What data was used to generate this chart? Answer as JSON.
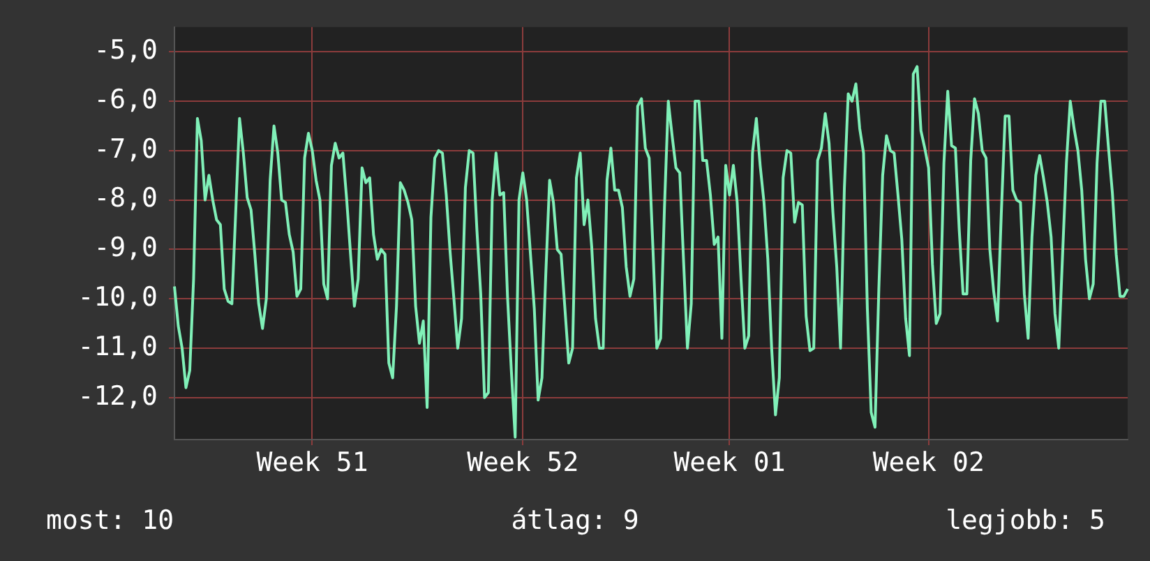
{
  "chart_data": {
    "type": "line",
    "annotations": [
      "most: 10",
      "átlag: 9",
      "legjobb: 5"
    ],
    "categories": [
      null,
      null,
      null,
      null,
      null,
      null,
      null,
      null,
      null,
      null,
      null,
      null,
      null,
      null,
      null,
      null,
      null,
      null,
      null,
      null,
      null,
      null,
      null,
      null,
      null,
      null,
      null,
      null,
      null,
      null,
      null,
      null,
      null,
      null,
      null,
      null,
      "Week 51",
      null,
      null,
      null,
      null,
      null,
      null,
      null,
      null,
      null,
      null,
      null,
      null,
      null,
      null,
      null,
      null,
      null,
      null,
      null,
      null,
      null,
      null,
      null,
      null,
      null,
      null,
      null,
      null,
      null,
      null,
      null,
      null,
      null,
      null,
      null,
      null,
      null,
      null,
      null,
      null,
      null,
      null,
      null,
      null,
      null,
      null,
      null,
      null,
      null,
      null,
      null,
      null,
      null,
      null,
      "Week 52",
      null,
      null,
      null,
      null,
      null,
      null,
      null,
      null,
      null,
      null,
      null,
      null,
      null,
      null,
      null,
      null,
      null,
      null,
      null,
      null,
      null,
      null,
      null,
      null,
      null,
      null,
      null,
      null,
      null,
      null,
      null,
      null,
      null,
      null,
      null,
      null,
      null,
      null,
      null,
      null,
      null,
      null,
      null,
      null,
      null,
      null,
      null,
      null,
      null,
      null,
      null,
      null,
      null,
      "Week 01",
      null,
      null,
      null,
      null,
      null,
      null,
      null,
      null,
      null,
      null,
      null,
      null,
      null,
      null,
      null,
      null,
      null,
      null,
      null,
      null,
      null,
      null,
      null,
      null,
      null,
      null,
      null,
      null,
      null,
      null,
      null,
      null,
      null,
      null,
      null,
      null,
      null,
      null,
      null,
      null,
      null,
      null,
      null,
      null,
      null,
      null,
      null,
      null,
      null,
      null,
      null,
      "Week 02",
      null,
      null,
      null,
      null,
      null,
      null,
      null,
      null,
      null,
      null,
      null,
      null,
      null,
      null,
      null,
      null,
      null,
      null,
      null,
      null,
      null,
      null,
      null,
      null,
      null,
      null,
      null,
      null,
      null,
      null,
      null,
      null,
      null,
      null,
      null,
      null,
      null,
      null,
      null,
      null,
      null,
      null,
      null,
      null,
      null,
      null,
      null,
      null,
      null,
      null,
      null,
      null
    ],
    "ylim": [
      -12.85,
      -4.5
    ],
    "yticks": [
      {
        "value": -12,
        "label": "-12,0"
      },
      {
        "value": -11,
        "label": "-11,0"
      },
      {
        "value": -10,
        "label": "-10,0"
      },
      {
        "value": -9,
        "label": "-9,0"
      },
      {
        "value": -8,
        "label": "-8,0"
      },
      {
        "value": -7,
        "label": "-7,0"
      },
      {
        "value": -6,
        "label": "-6,0"
      },
      {
        "value": -5,
        "label": "-5,0"
      }
    ],
    "grid": true,
    "legend": false,
    "marker": "none",
    "line_style": "solid",
    "series": [
      {
        "color": "#80f0b8",
        "values": [
          -9.75,
          -10.55,
          -11,
          -11.8,
          -11.45,
          -9.6,
          -6.35,
          -6.8,
          -8,
          -7.5,
          -8,
          -8.4,
          -8.5,
          -9.8,
          -10.05,
          -10.1,
          -8.25,
          -6.35,
          -7.05,
          -7.95,
          -8.2,
          -9.1,
          -10.1,
          -10.6,
          -10,
          -7.6,
          -6.5,
          -7.05,
          -8,
          -8.05,
          -8.7,
          -9.05,
          -9.95,
          -9.8,
          -7.15,
          -6.65,
          -7,
          -7.6,
          -8,
          -9.7,
          -10,
          -7.3,
          -6.85,
          -7.15,
          -7.05,
          -8,
          -9.1,
          -10.15,
          -9.6,
          -7.35,
          -7.65,
          -7.55,
          -8.7,
          -9.2,
          -9,
          -9.1,
          -11.3,
          -11.6,
          -10.15,
          -7.65,
          -7.8,
          -8.05,
          -8.4,
          -10.15,
          -10.9,
          -10.45,
          -12.2,
          -8.35,
          -7.15,
          -7,
          -7.05,
          -7.9,
          -9.05,
          -10,
          -11,
          -10.4,
          -7.75,
          -7,
          -7.05,
          -8.6,
          -9.9,
          -12,
          -11.9,
          -8,
          -7.05,
          -7.9,
          -7.85,
          -9.95,
          -11.45,
          -12.8,
          -8,
          -7.45,
          -8,
          -9.1,
          -10.2,
          -12.05,
          -11.6,
          -9.5,
          -7.6,
          -8.05,
          -9,
          -9.1,
          -10.2,
          -11.3,
          -11,
          -7.55,
          -7.05,
          -8.5,
          -8,
          -8.95,
          -10.4,
          -11,
          -11,
          -7.6,
          -6.95,
          -7.8,
          -7.8,
          -8.15,
          -9.35,
          -9.95,
          -9.6,
          -6.1,
          -5.95,
          -6.95,
          -7.15,
          -9,
          -11,
          -10.8,
          -8.15,
          -6,
          -6.7,
          -7.35,
          -7.45,
          -9.25,
          -11,
          -10.1,
          -6,
          -6,
          -7.2,
          -7.2,
          -7.9,
          -8.9,
          -8.75,
          -10.8,
          -7.3,
          -7.9,
          -7.3,
          -8.05,
          -9.6,
          -11,
          -10.75,
          -7.05,
          -6.35,
          -7.3,
          -8.05,
          -9.2,
          -11,
          -12.35,
          -11.6,
          -7.55,
          -7,
          -7.05,
          -8.45,
          -8.05,
          -8.1,
          -10.35,
          -11.05,
          -11,
          -7.2,
          -6.95,
          -6.25,
          -6.85,
          -8.25,
          -9.35,
          -11,
          -7.75,
          -5.85,
          -6,
          -5.65,
          -6.55,
          -7.05,
          -10.2,
          -12.3,
          -12.6,
          -9.8,
          -7.5,
          -6.7,
          -7,
          -7.05,
          -7.9,
          -8.8,
          -10.4,
          -11.15,
          -5.45,
          -5.3,
          -6.6,
          -6.95,
          -7.35,
          -9.3,
          -10.5,
          -10.3,
          -7.25,
          -5.8,
          -6.9,
          -6.95,
          -8.6,
          -9.9,
          -9.9,
          -7.2,
          -5.95,
          -6.25,
          -7,
          -7.15,
          -9,
          -9.85,
          -10.45,
          -8.25,
          -6.3,
          -6.3,
          -7.8,
          -8,
          -8.05,
          -9.9,
          -10.8,
          -8.75,
          -7.5,
          -7.1,
          -7.55,
          -8.05,
          -8.75,
          -10.3,
          -11,
          -9.1,
          -7.25,
          -6,
          -6.55,
          -7,
          -7.8,
          -9.2,
          -10,
          -9.7,
          -7.25,
          -6,
          -6,
          -6.95,
          -7.85,
          -9.1,
          -9.95,
          -9.95,
          -9.8
        ]
      }
    ]
  }
}
